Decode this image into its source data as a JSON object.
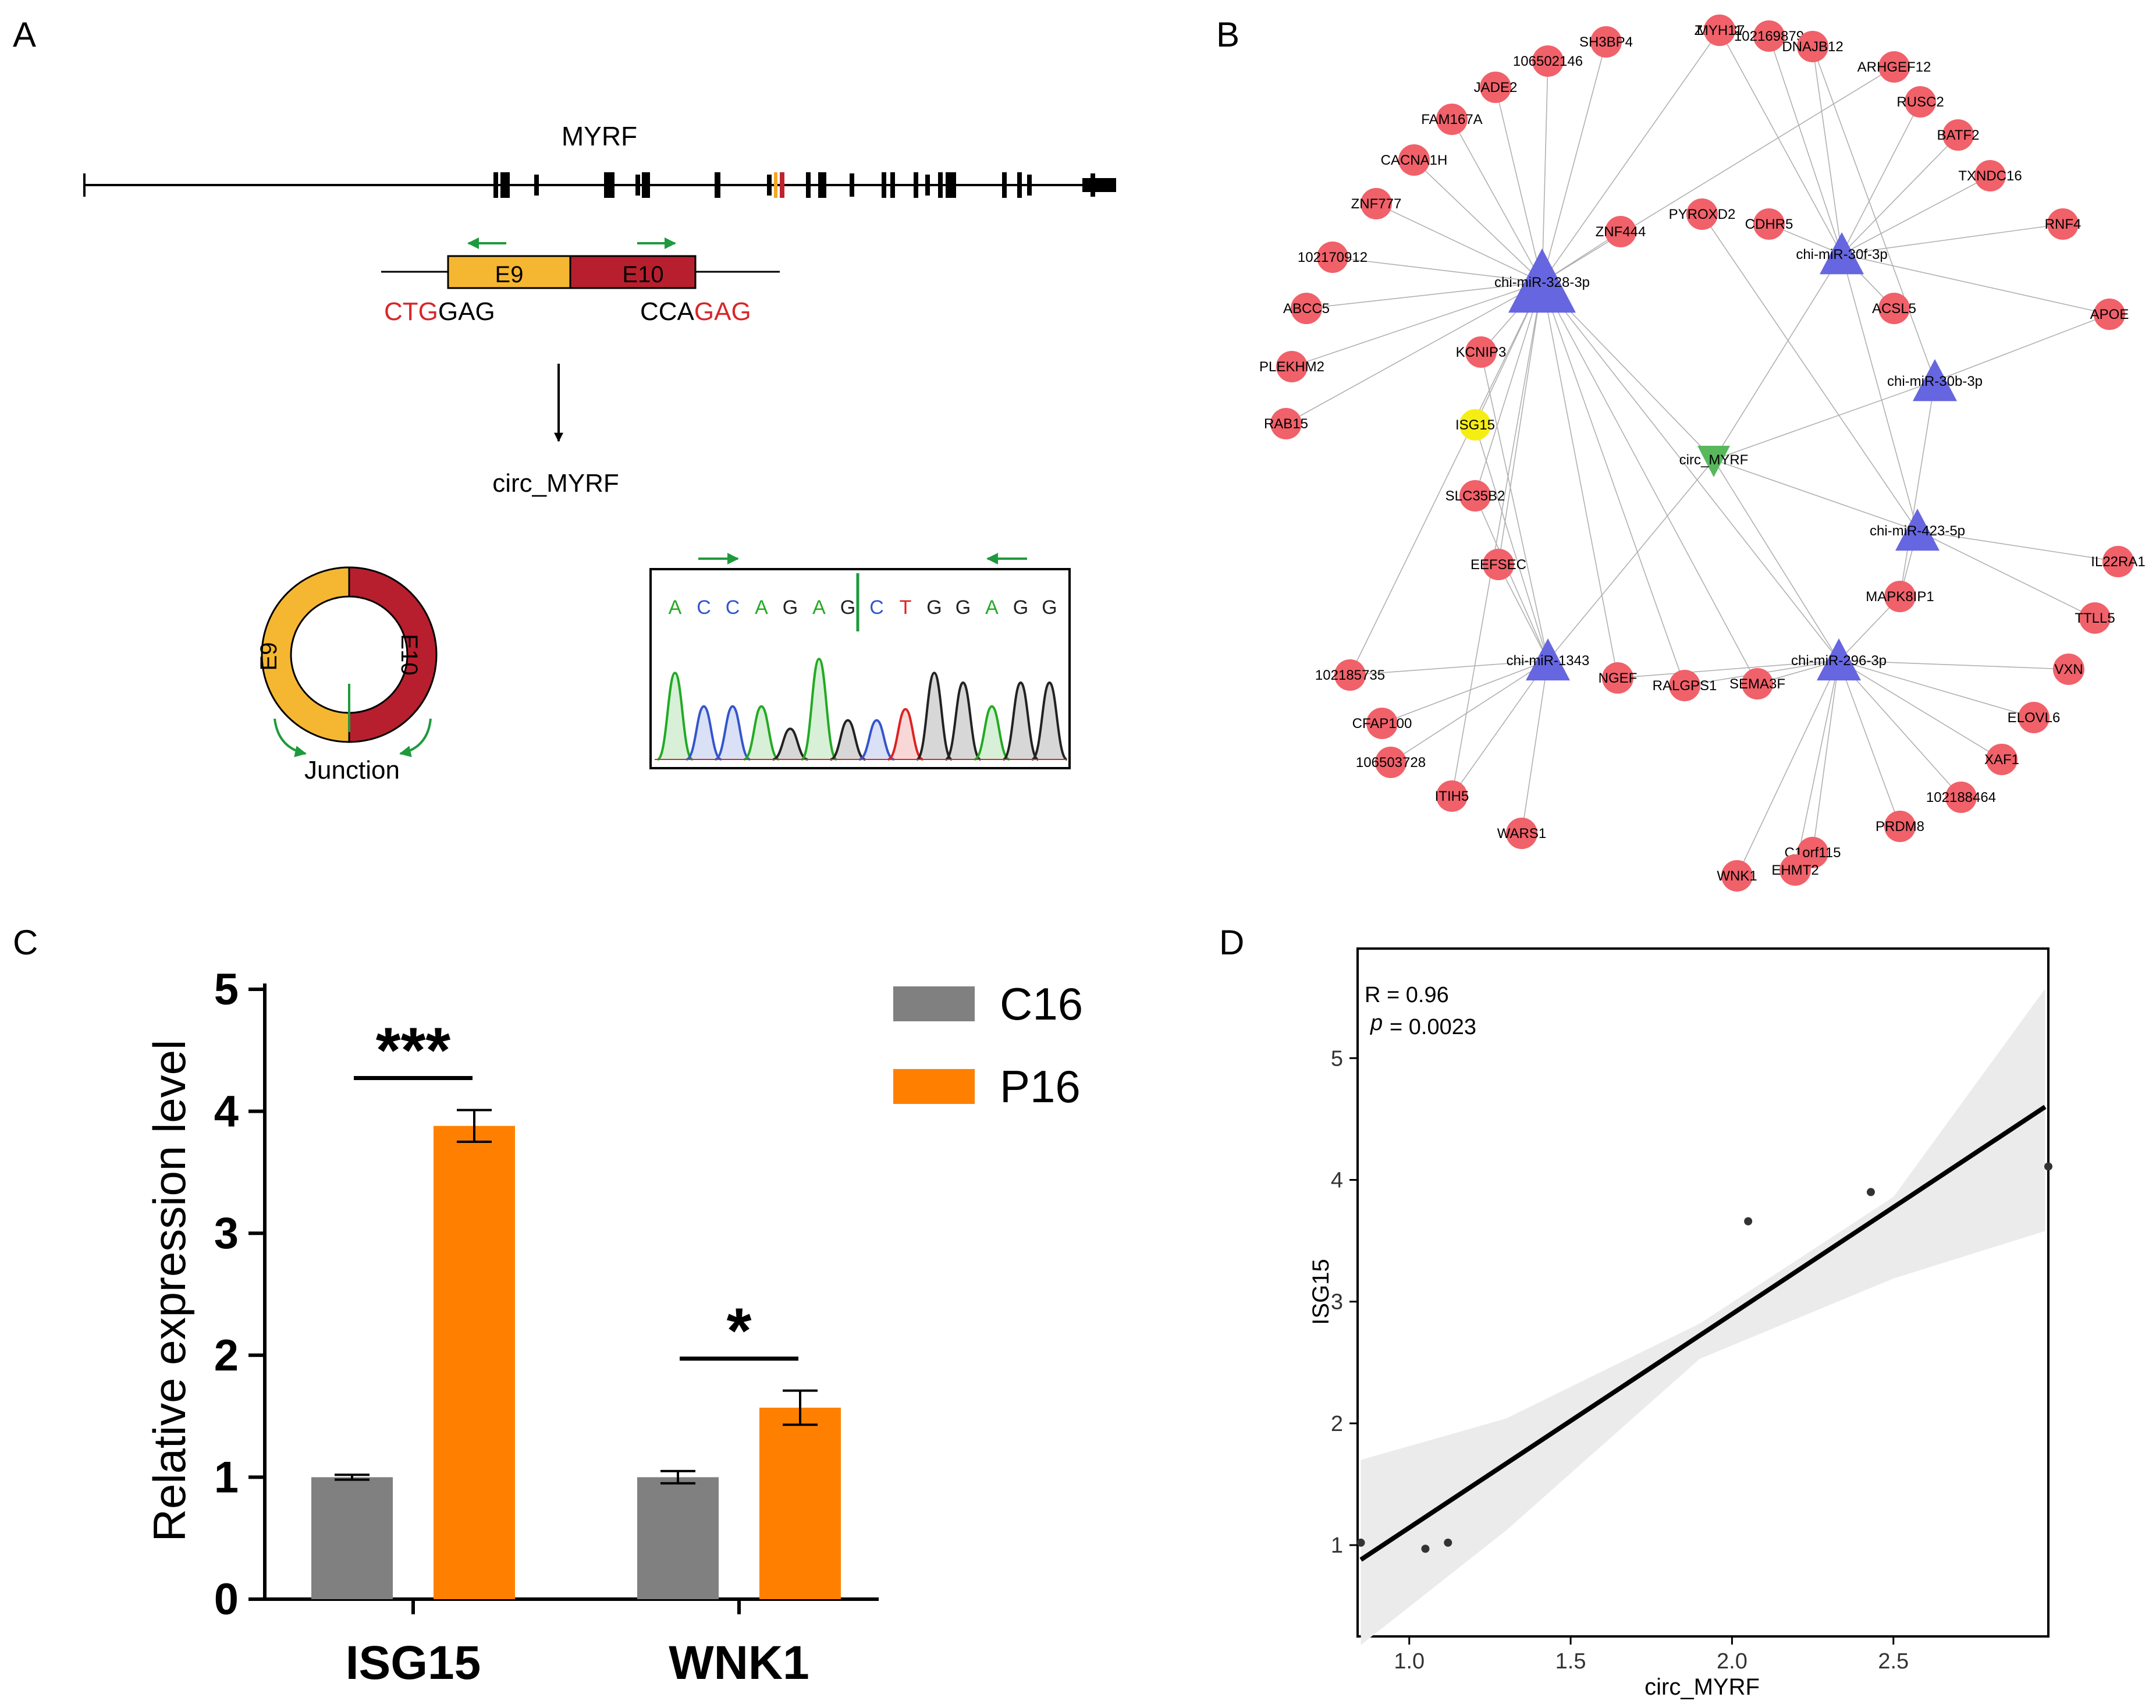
{
  "panels": {
    "A": {
      "letter": "A",
      "gene": "MYRF",
      "exon9": "E9",
      "exon10": "E10",
      "seq_left_red": "CTG",
      "seq_left_black": "GAG",
      "seq_right_black": "CCA",
      "seq_right_red": "GAG",
      "circ_label": "circ_MYRF",
      "ring_e9": "E9",
      "ring_e10": "E10",
      "junction_label": "Junction",
      "bases": [
        {
          "b": "A",
          "color": "#22aa22"
        },
        {
          "b": "C",
          "color": "#3355cc"
        },
        {
          "b": "C",
          "color": "#3355cc"
        },
        {
          "b": "A",
          "color": "#22aa22"
        },
        {
          "b": "G",
          "color": "#222222"
        },
        {
          "b": "A",
          "color": "#22aa22"
        },
        {
          "b": "G",
          "color": "#222222"
        },
        {
          "b": "C",
          "color": "#3355cc"
        },
        {
          "b": "T",
          "color": "#dd2222"
        },
        {
          "b": "G",
          "color": "#222222"
        },
        {
          "b": "G",
          "color": "#222222"
        },
        {
          "b": "A",
          "color": "#22aa22"
        },
        {
          "b": "G",
          "color": "#222222"
        },
        {
          "b": "G",
          "color": "#222222"
        }
      ]
    },
    "B": {
      "letter": "B",
      "mirnas": [
        "chi-miR-328-3p",
        "chi-miR-30f-3p",
        "chi-miR-30b-3p",
        "chi-miR-423-5p",
        "chi-miR-1343",
        "chi-miR-296-3p"
      ],
      "circ": "circ_MYRF",
      "highlight_gene": "ISG15",
      "genes": [
        "ZNF687",
        "MYH11",
        "102169879",
        "SH3BP4",
        "DNAJB12",
        "106502146",
        "ARHGEF12",
        "JADE2",
        "RUSC2",
        "FAM167A",
        "BATF2",
        "CACNA1H",
        "TXNDC16",
        "ZNF777",
        "RNF4",
        "102170912",
        "ZNF444",
        "PYROXD2",
        "CDHR5",
        "ABCC5",
        "ACSL5",
        "APOE",
        "PLEKHM2",
        "KCNIP3",
        "RAB15",
        "ISG15",
        "SLC35B2",
        "EEFSEC",
        "IL22RA1",
        "MAPK8IP1",
        "TTLL5",
        "102185735",
        "NGEF",
        "RALGPS1",
        "SEMA3F",
        "VXN",
        "CFAP100",
        "ELOVL6",
        "106503728",
        "XAF1",
        "ITIH5",
        "102188464",
        "WARS1",
        "PRDM8",
        "C1orf115",
        "EHMT2",
        "WNK1"
      ]
    },
    "C": {
      "letter": "C"
    },
    "D": {
      "letter": "D"
    }
  },
  "chart_data": [
    {
      "type": "bar",
      "panel": "C",
      "ylabel": "Relative expression level",
      "ylim": [
        0,
        5
      ],
      "yticks": [
        "0",
        "1",
        "2",
        "3",
        "4",
        "5"
      ],
      "categories": [
        "ISG15",
        "WNK1"
      ],
      "series": [
        {
          "name": "C16",
          "color": "#808080",
          "values": [
            1.0,
            1.0
          ],
          "errors": [
            0.02,
            0.05
          ]
        },
        {
          "name": "P16",
          "color": "#ff8000",
          "values": [
            3.88,
            1.57
          ],
          "errors": [
            0.13,
            0.14
          ]
        }
      ],
      "significance": [
        "***",
        "*"
      ]
    },
    {
      "type": "scatter",
      "panel": "D",
      "xlabel": "circ_MYRF",
      "ylabel": "ISG15",
      "xlim": [
        0.84,
        2.98
      ],
      "ylim": [
        0.25,
        5.9
      ],
      "xticks": [
        "1.0",
        "1.5",
        "2.0",
        "2.5"
      ],
      "yticks": [
        "1",
        "2",
        "3",
        "4",
        "5"
      ],
      "x": [
        0.85,
        1.05,
        1.12,
        2.05,
        2.43,
        2.98
      ],
      "y": [
        1.02,
        0.97,
        1.02,
        3.66,
        3.9,
        4.11
      ],
      "fit": {
        "x": [
          0.85,
          2.97
        ],
        "y": [
          0.88,
          4.6
        ]
      },
      "band_lower": [
        [
          0.85,
          0.18
        ],
        [
          1.3,
          1.12
        ],
        [
          1.9,
          2.53
        ],
        [
          2.5,
          3.19
        ],
        [
          2.97,
          3.58
        ]
      ],
      "band_upper": [
        [
          0.85,
          1.7
        ],
        [
          1.3,
          2.04
        ],
        [
          1.9,
          2.82
        ],
        [
          2.5,
          3.86
        ],
        [
          2.97,
          5.57
        ]
      ],
      "r_label": "R = 0.96",
      "p_label": "p",
      "p_value": "= 0.0023"
    }
  ]
}
